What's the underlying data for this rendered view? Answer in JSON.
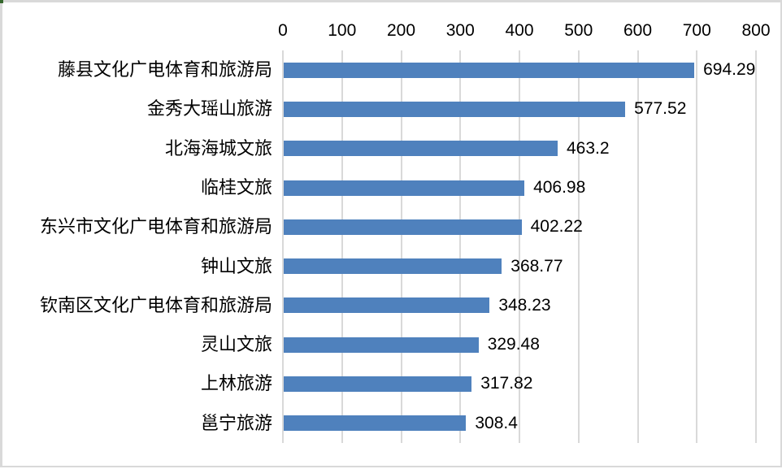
{
  "chart_data": {
    "type": "bar",
    "orientation": "horizontal",
    "title": "",
    "categories": [
      "藤县文化广电体育和旅游局",
      "金秀大瑶山旅游",
      "北海海城文旅",
      "临桂文旅",
      "东兴市文化广电体育和旅游局",
      "钟山文旅",
      "钦南区文化广电体育和旅游局",
      "灵山文旅",
      "上林旅游",
      "邕宁旅游"
    ],
    "values": [
      694.29,
      577.52,
      463.2,
      406.98,
      402.22,
      368.77,
      348.23,
      329.48,
      317.82,
      308.4
    ],
    "value_labels": [
      "694.29",
      "577.52",
      "463.2",
      "406.98",
      "402.22",
      "368.77",
      "348.23",
      "329.48",
      "317.82",
      "308.4"
    ],
    "x_axis": {
      "position": "top",
      "min": 0,
      "max": 800,
      "tick_interval": 100,
      "ticks": [
        "0",
        "100",
        "200",
        "300",
        "400",
        "500",
        "600",
        "700",
        "800"
      ]
    },
    "grid": true,
    "legend": "none",
    "colors": {
      "bar": "#4F81BD",
      "gridline": "#D9D9D9",
      "frame_border": "#D9D9D9",
      "text": "#000000",
      "corner_mark": "#35682D"
    }
  }
}
